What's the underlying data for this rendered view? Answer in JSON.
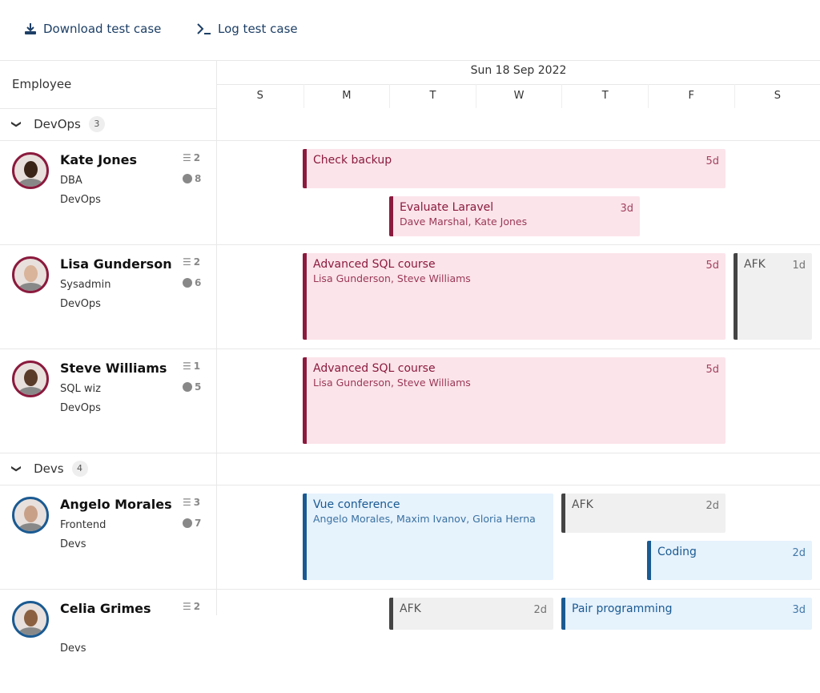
{
  "toolbar": {
    "download": "Download test case",
    "log": "Log test case"
  },
  "header": {
    "employee": "Employee",
    "week": "Sun 18 Sep 2022",
    "days": [
      "S",
      "M",
      "T",
      "W",
      "T",
      "F",
      "S"
    ]
  },
  "groups": [
    {
      "name": "DevOps",
      "count": "3"
    },
    {
      "name": "Devs",
      "count": "4"
    }
  ],
  "employees": [
    {
      "name": "Kate Jones",
      "role": "DBA",
      "team": "DevOps",
      "tasks": "2",
      "hours": "8"
    },
    {
      "name": "Lisa Gunderson",
      "role": "Sysadmin",
      "team": "DevOps",
      "tasks": "2",
      "hours": "6"
    },
    {
      "name": "Steve Williams",
      "role": "SQL wiz",
      "team": "DevOps",
      "tasks": "1",
      "hours": "5"
    },
    {
      "name": "Angelo Morales",
      "role": "Frontend",
      "team": "Devs",
      "tasks": "3",
      "hours": "7"
    },
    {
      "name": "Celia Grimes",
      "role": "",
      "team": "Devs",
      "tasks": "2",
      "hours": ""
    }
  ],
  "events": [
    {
      "title": "Check backup",
      "duration": "5d",
      "people": ""
    },
    {
      "title": "Evaluate Laravel",
      "duration": "3d",
      "people": "Dave Marshal, Kate Jones"
    },
    {
      "title": "Advanced SQL course",
      "duration": "5d",
      "people": "Lisa Gunderson, Steve Williams"
    },
    {
      "title": "AFK",
      "duration": "1d",
      "people": ""
    },
    {
      "title": "Advanced SQL course",
      "duration": "5d",
      "people": "Lisa Gunderson, Steve Williams"
    },
    {
      "title": "Vue conference",
      "duration": "",
      "people": "Angelo Morales, Maxim Ivanov, Gloria Herna"
    },
    {
      "title": "AFK",
      "duration": "2d",
      "people": ""
    },
    {
      "title": "Coding",
      "duration": "2d",
      "people": ""
    },
    {
      "title": "AFK",
      "duration": "2d",
      "people": ""
    },
    {
      "title": "Pair programming",
      "duration": "3d",
      "people": ""
    }
  ],
  "colors": {
    "devops": "#8b1a3e",
    "devs": "#1a5a92",
    "afk": "#444444"
  }
}
